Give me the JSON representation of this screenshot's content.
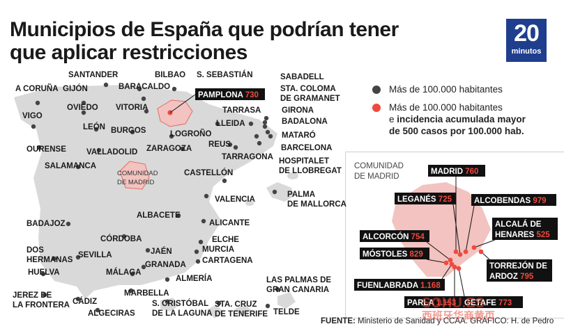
{
  "title": [
    "Municipios de España que podrían tener",
    "que aplicar restricciones"
  ],
  "logo": {
    "number": "20",
    "word": "minutos"
  },
  "legend": {
    "large": "Más de 100.000 habitantes",
    "incidence": [
      "Más de 100.000 habitantes",
      "e incidencia acumulada mayor",
      "de 500 casos por 100.000 hab."
    ],
    "incidence_bold_parts": [
      "incidencia acumulada mayor",
      "de 500 casos por 100.000 hab."
    ]
  },
  "colors": {
    "accent": "#ef4a3f",
    "dot": "#444444",
    "region_fill": "#f2c3c0",
    "land": "#d9d9d9",
    "label_box": "#111111"
  },
  "cities": [
    {
      "lines": [
        "A CORUÑA"
      ]
    },
    {
      "lines": [
        "GIJÓN"
      ]
    },
    {
      "lines": [
        "SANTANDER"
      ]
    },
    {
      "lines": [
        "BILBAO"
      ]
    },
    {
      "lines": [
        "S. SEBASTIÁN"
      ]
    },
    {
      "lines": [
        "BARACALDO"
      ]
    },
    {
      "lines": [
        "OVIEDO"
      ]
    },
    {
      "lines": [
        "VITORIA"
      ]
    },
    {
      "lines": [
        "VIGO"
      ]
    },
    {
      "lines": [
        "LEÓN"
      ]
    },
    {
      "lines": [
        "BURGOS"
      ]
    },
    {
      "lines": [
        "LOGROÑO"
      ]
    },
    {
      "lines": [
        "OURENSE"
      ]
    },
    {
      "lines": [
        "VALLADOLID"
      ]
    },
    {
      "lines": [
        "ZARAGOZA"
      ]
    },
    {
      "lines": [
        "SALAMANCA"
      ]
    },
    {
      "lines": [
        "SABADELL"
      ]
    },
    {
      "lines": [
        "STA. COLOMA",
        "DE GRAMANET"
      ]
    },
    {
      "lines": [
        "TARRASA"
      ]
    },
    {
      "lines": [
        "GIRONA"
      ]
    },
    {
      "lines": [
        "LLEIDA"
      ]
    },
    {
      "lines": [
        "BADALONA"
      ]
    },
    {
      "lines": [
        "MATARÓ"
      ]
    },
    {
      "lines": [
        "REUS"
      ]
    },
    {
      "lines": [
        "BARCELONA"
      ]
    },
    {
      "lines": [
        "TARRAGONA"
      ]
    },
    {
      "lines": [
        "HOSPITALET",
        "DE LLOBREGAT"
      ]
    },
    {
      "lines": [
        "CASTELLÓN"
      ]
    },
    {
      "lines": [
        "PALMA",
        "DE MALLORCA"
      ]
    },
    {
      "lines": [
        "VALENCIA"
      ]
    },
    {
      "lines": [
        "ALBACETE"
      ]
    },
    {
      "lines": [
        "BADAJOZ"
      ]
    },
    {
      "lines": [
        "ALICANTE"
      ]
    },
    {
      "lines": [
        "CÓRDOBA"
      ]
    },
    {
      "lines": [
        "ELCHE"
      ]
    },
    {
      "lines": [
        "DOS",
        "HERMANAS"
      ]
    },
    {
      "lines": [
        "MURCIA"
      ]
    },
    {
      "lines": [
        "JAÉN"
      ]
    },
    {
      "lines": [
        "SEVILLA"
      ]
    },
    {
      "lines": [
        "CARTAGENA"
      ]
    },
    {
      "lines": [
        "GRANADA"
      ]
    },
    {
      "lines": [
        "HUELVA"
      ]
    },
    {
      "lines": [
        "MÁLAGA"
      ]
    },
    {
      "lines": [
        "ALMERÍA"
      ]
    },
    {
      "lines": [
        "JEREZ DE",
        "LA FRONTERA"
      ]
    },
    {
      "lines": [
        "MARBELLA"
      ]
    },
    {
      "lines": [
        "LAS PALMAS DE",
        "GRAN CANARIA"
      ]
    },
    {
      "lines": [
        "CÁDIZ"
      ]
    },
    {
      "lines": [
        "S. CRISTÓBAL",
        "DE LA LAGUNA"
      ]
    },
    {
      "lines": [
        "STA. CRUZ",
        "DE TENERIFE"
      ]
    },
    {
      "lines": [
        "ALGECIRAS"
      ]
    },
    {
      "lines": [
        "TELDE"
      ]
    }
  ],
  "region_label": [
    "COMUNIDAD",
    "DE MADRID"
  ],
  "pamplona": {
    "name": "PAMPLONA",
    "value": "730"
  },
  "inset": {
    "title": [
      "COMUNIDAD",
      "DE MADRID"
    ],
    "municipalities": [
      {
        "name": "MADRID",
        "value": "760"
      },
      {
        "name": "LEGANÉS",
        "value": "725"
      },
      {
        "name": "ALCOBENDAS",
        "value": "979"
      },
      {
        "name": "ALCORCÓN",
        "value": "754"
      },
      {
        "name": "ALCALÁ DE HENARES",
        "value": "525"
      },
      {
        "name": "MÓSTOLES",
        "value": "829"
      },
      {
        "name": "TORREJÓN DE ARDOZ",
        "value": "795"
      },
      {
        "name": "FUENLABRADA",
        "value": "1.168"
      },
      {
        "name": "PARLA",
        "value": "1.153"
      },
      {
        "name": "GETAFE",
        "value": "773"
      }
    ]
  },
  "source": {
    "label": "FUENTE:",
    "text": "Ministerio de Sanidad y CCAA. GRÁFICO: H. de Pedro"
  },
  "watermark": {
    "main": "SOHU.ES",
    "sub": "西班牙华商黄页"
  }
}
